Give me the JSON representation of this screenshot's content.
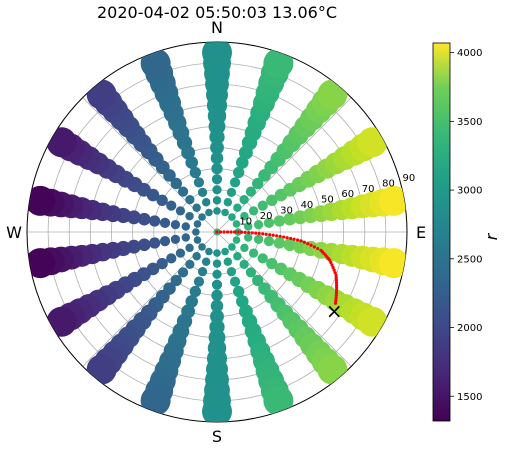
{
  "chart_data": {
    "type": "scatter",
    "projection": "polar",
    "title": "2020-04-02 05:50:03 13.06°C",
    "compass": {
      "north": "N",
      "east": "E",
      "south": "S",
      "west": "W"
    },
    "radial_axis": {
      "label_angle_deg": 75,
      "range": [
        0,
        90
      ],
      "ticks": [
        10,
        20,
        30,
        40,
        50,
        60,
        70,
        80,
        90
      ]
    },
    "azimuth_grid_deg": [
      0,
      45,
      90,
      135,
      180,
      225,
      270,
      315
    ],
    "point_grid": {
      "azimuths_deg": [
        0,
        20,
        40,
        60,
        80,
        100,
        120,
        140,
        160,
        180,
        200,
        220,
        240,
        260,
        280,
        300,
        320,
        340
      ],
      "inner_ring_deg": 10,
      "inner_ring_azimuths_deg": [
        0,
        22.5,
        45,
        67.5,
        90,
        112.5,
        135,
        157.5,
        180,
        202.5,
        225,
        247.5,
        270,
        292.5,
        315,
        337.5
      ],
      "zenith_values": [
        15,
        20,
        25,
        30,
        35,
        40,
        45,
        50,
        55,
        60,
        65,
        70,
        75,
        80,
        85
      ]
    },
    "sun_path": {
      "color": "#ff0000",
      "points": [
        {
          "az": 90,
          "zen": 0
        },
        {
          "az": 90,
          "zen": 10
        },
        {
          "az": 92,
          "zen": 20
        },
        {
          "az": 94,
          "zen": 30
        },
        {
          "az": 96,
          "zen": 40
        },
        {
          "az": 100,
          "zen": 50
        },
        {
          "az": 104,
          "zen": 55
        },
        {
          "az": 110,
          "zen": 60
        },
        {
          "az": 116,
          "zen": 63
        },
        {
          "az": 122,
          "zen": 66
        }
      ]
    },
    "sun_marker": {
      "az": 124,
      "zen": 67,
      "symbol": "×"
    },
    "colorbar": {
      "label": "r",
      "range": [
        1320,
        4070
      ],
      "ticks": [
        1500,
        2000,
        2500,
        3000,
        3500,
        4000
      ],
      "colormap": "viridis"
    }
  }
}
